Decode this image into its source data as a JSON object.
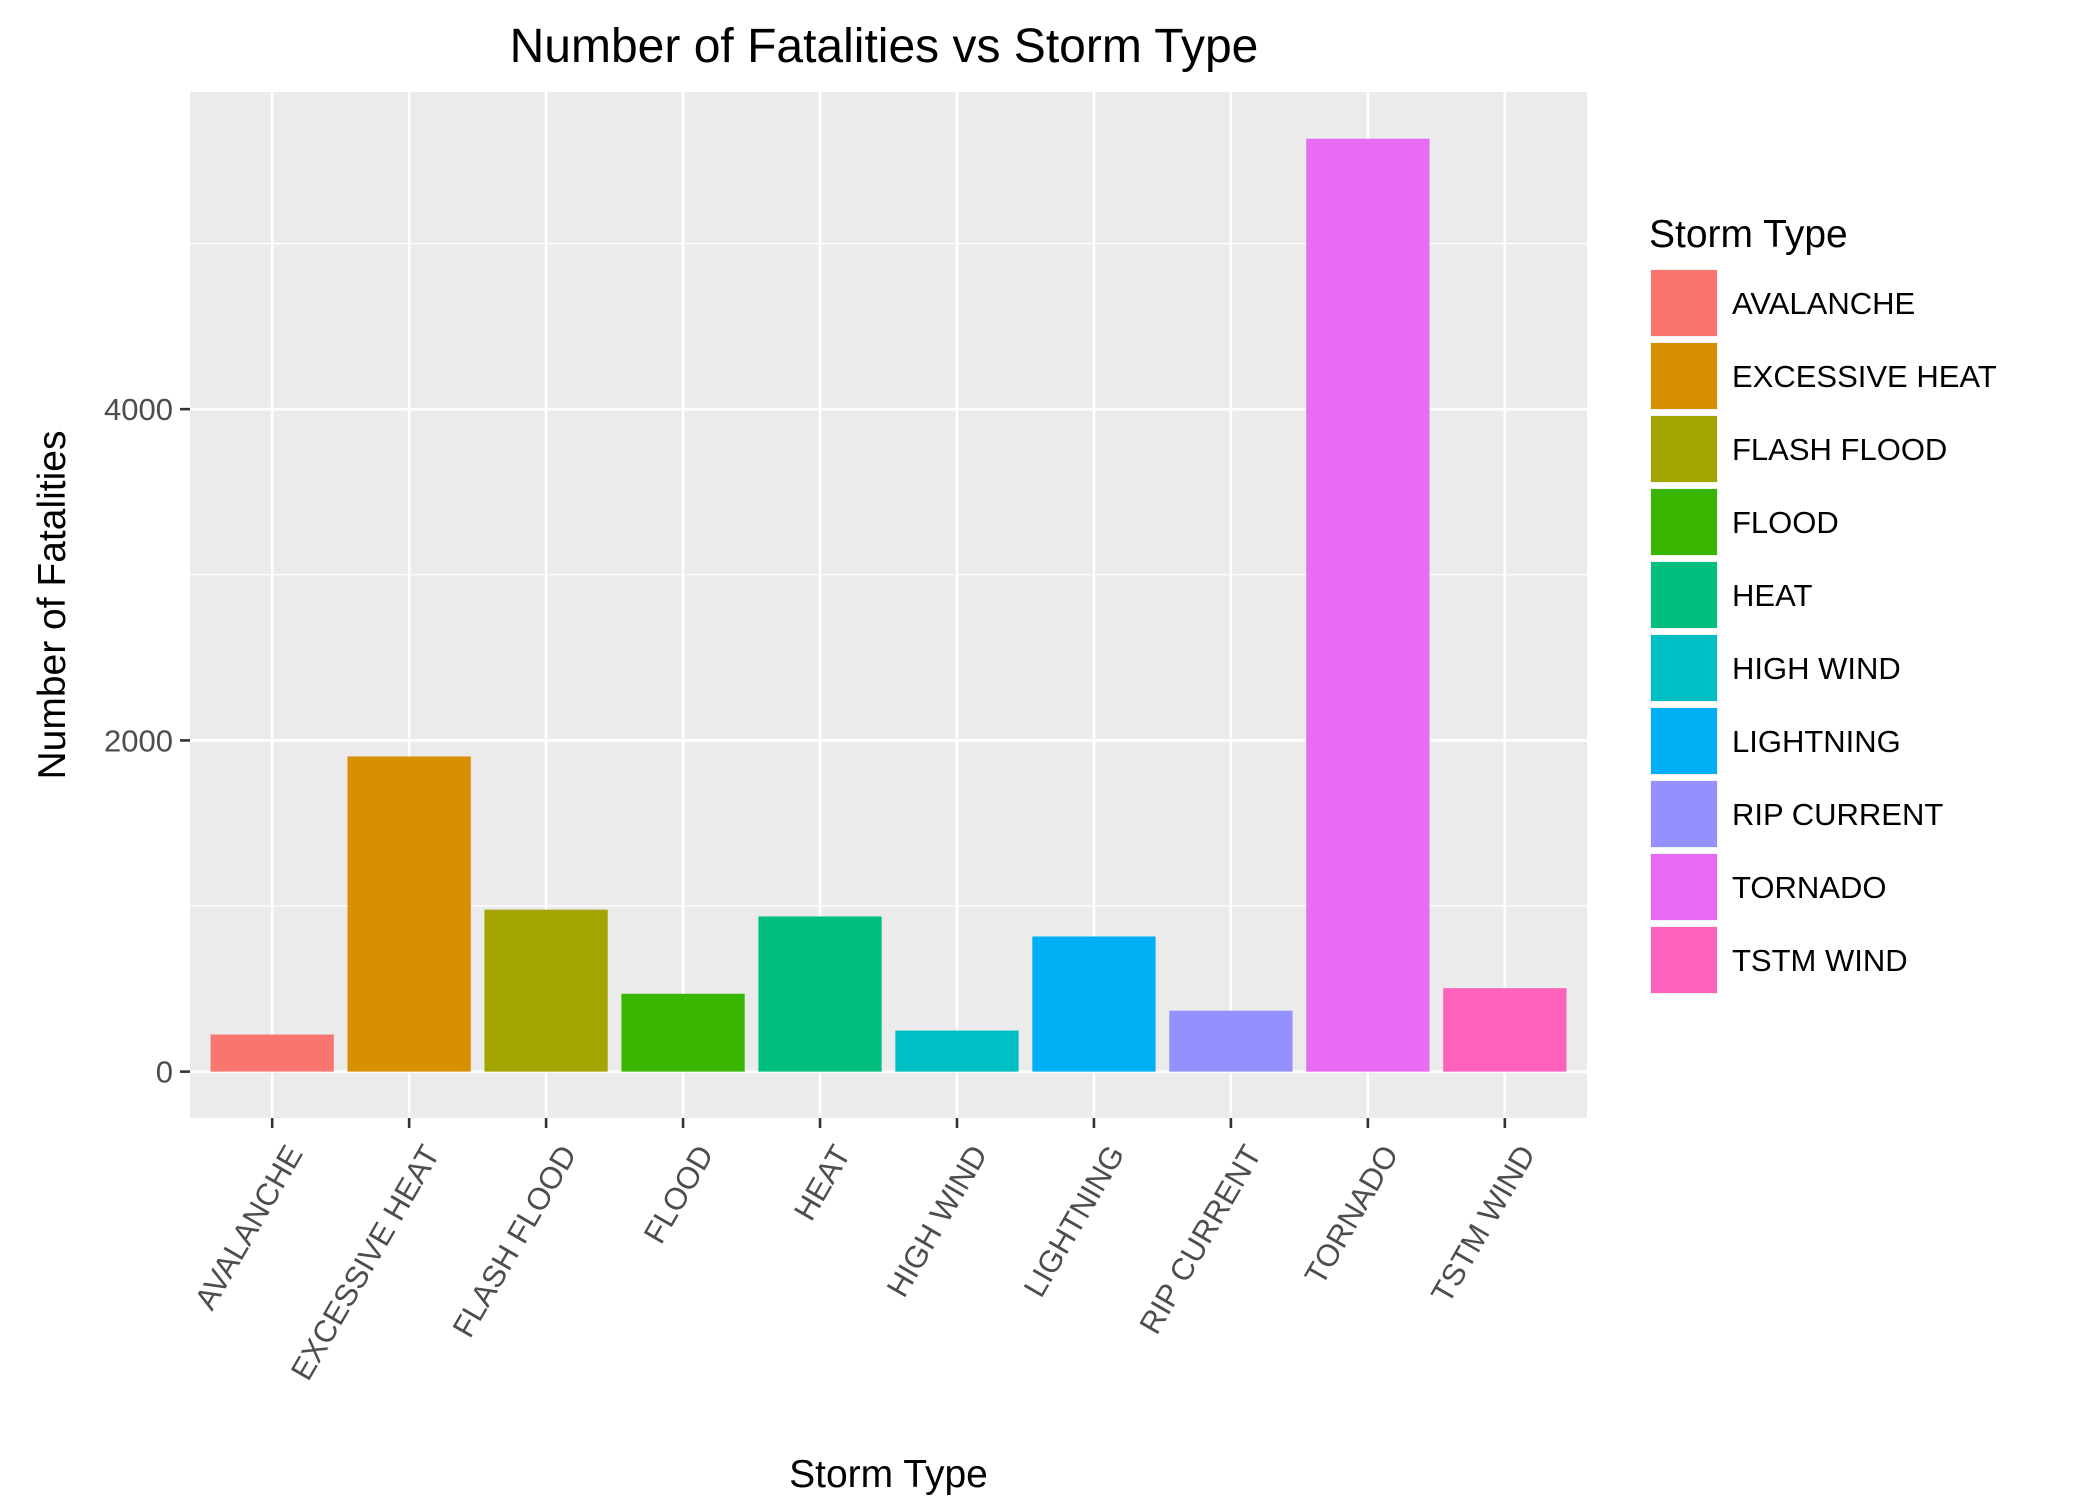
{
  "chart_data": {
    "type": "bar",
    "title": "Number of Fatalities vs Storm Type",
    "xlabel": "Storm Type",
    "ylabel": "Number of Fatalities",
    "categories": [
      "AVALANCHE",
      "EXCESSIVE HEAT",
      "FLASH FLOOD",
      "FLOOD",
      "HEAT",
      "HIGH WIND",
      "LIGHTNING",
      "RIP CURRENT",
      "TORNADO",
      "TSTM WIND"
    ],
    "values": [
      224,
      1903,
      978,
      470,
      937,
      248,
      816,
      368,
      5633,
      504
    ],
    "colors": [
      "#F8766D",
      "#D89000",
      "#A3A500",
      "#39B600",
      "#00BF7D",
      "#00BFC4",
      "#00B0F6",
      "#9590FF",
      "#E76BF3",
      "#FF62BC"
    ],
    "ylim": [
      -280,
      5915
    ],
    "y_ticks": [
      0,
      2000,
      4000
    ],
    "y_tick_labels": [
      "0",
      "2000",
      "4000"
    ],
    "y_minor_ticks": [
      1000,
      3000,
      5000
    ],
    "grid": true,
    "panel_background": "#EBEBEB",
    "grid_color": "#FFFFFF",
    "x_tick_rotation_deg": 60,
    "legend": {
      "title": "Storm Type",
      "position": "right",
      "items": [
        "AVALANCHE",
        "EXCESSIVE HEAT",
        "FLASH FLOOD",
        "FLOOD",
        "HEAT",
        "HIGH WIND",
        "LIGHTNING",
        "RIP CURRENT",
        "TORNADO",
        "TSTM WIND"
      ]
    }
  }
}
